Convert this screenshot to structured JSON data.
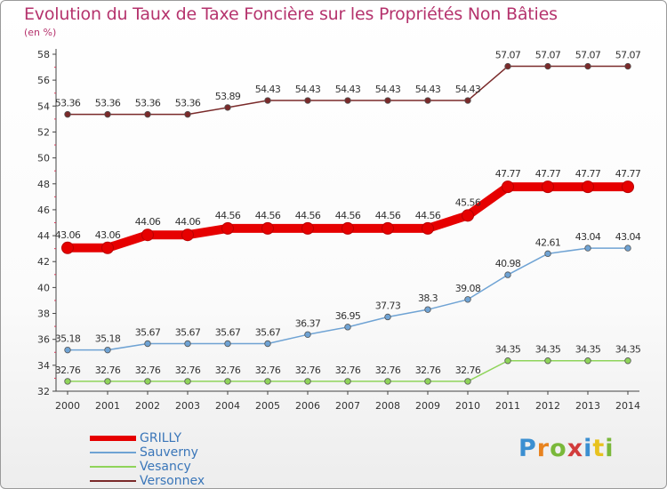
{
  "chart_data": {
    "type": "line",
    "title": "Evolution du Taux de Taxe Foncière sur les Propriétés Non Bâties",
    "subtitle": "(en %)",
    "x": [
      "2000",
      "2001",
      "2002",
      "2003",
      "2004",
      "2005",
      "2006",
      "2007",
      "2008",
      "2009",
      "2010",
      "2011",
      "2012",
      "2013",
      "2014"
    ],
    "ylim": [
      32,
      58
    ],
    "yticks": [
      "32",
      "34",
      "36",
      "38",
      "40",
      "42",
      "44",
      "46",
      "48",
      "50",
      "52",
      "54",
      "56",
      "58"
    ],
    "series": [
      {
        "name": "GRILLY",
        "color": "#e60000",
        "values": [
          43.06,
          43.06,
          44.06,
          44.06,
          44.56,
          44.56,
          44.56,
          44.56,
          44.56,
          44.56,
          45.56,
          47.77,
          47.77,
          47.77,
          47.77
        ],
        "labels": [
          "43.06",
          "43.06",
          "44.06",
          "44.06",
          "44.56",
          "44.56",
          "44.56",
          "44.56",
          "44.56",
          "44.56",
          "45.56",
          "47.77",
          "47.77",
          "47.77",
          "47.77"
        ]
      },
      {
        "name": "Sauverny",
        "color": "#6fa3d4",
        "values": [
          35.18,
          35.18,
          35.67,
          35.67,
          35.67,
          35.67,
          36.37,
          36.95,
          37.73,
          38.3,
          39.08,
          40.98,
          42.61,
          43.04,
          43.04
        ],
        "labels": [
          "35.18",
          "35.18",
          "35.67",
          "35.67",
          "35.67",
          "35.67",
          "36.37",
          "36.95",
          "37.73",
          "38.3",
          "39.08",
          "40.98",
          "42.61",
          "43.04",
          "43.04"
        ]
      },
      {
        "name": "Vesancy",
        "color": "#8fd45a",
        "values": [
          32.76,
          32.76,
          32.76,
          32.76,
          32.76,
          32.76,
          32.76,
          32.76,
          32.76,
          32.76,
          32.76,
          34.35,
          34.35,
          34.35,
          34.35
        ],
        "labels": [
          "32.76",
          "32.76",
          "32.76",
          "32.76",
          "32.76",
          "32.76",
          "32.76",
          "32.76",
          "32.76",
          "32.76",
          "32.76",
          "34.35",
          "34.35",
          "34.35",
          "34.35"
        ]
      },
      {
        "name": "Versonnex",
        "color": "#7a2a2a",
        "values": [
          53.36,
          53.36,
          53.36,
          53.36,
          53.89,
          54.43,
          54.43,
          54.43,
          54.43,
          54.43,
          54.43,
          57.07,
          57.07,
          57.07,
          57.07
        ],
        "labels": [
          "53.36",
          "53.36",
          "53.36",
          "53.36",
          "53.89",
          "54.43",
          "54.43",
          "54.43",
          "54.43",
          "54.43",
          "54.43",
          "57.07",
          "57.07",
          "57.07",
          "57.07"
        ]
      }
    ],
    "grid": false,
    "legend_position": "bottom-left"
  },
  "logo": {
    "letters": [
      "P",
      "r",
      "o",
      "x",
      "i",
      "t",
      "i"
    ]
  }
}
